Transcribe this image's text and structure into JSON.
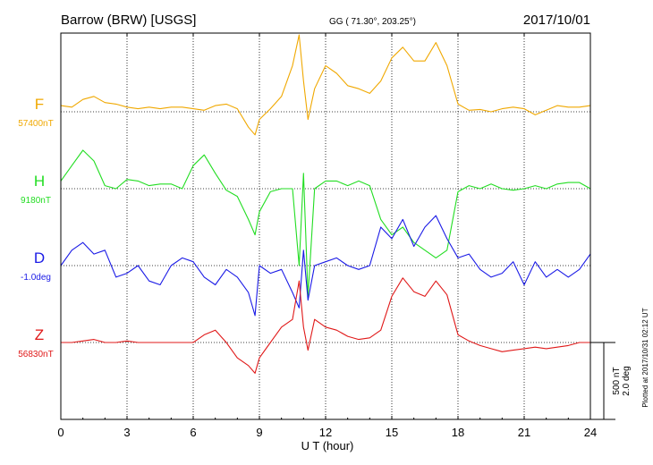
{
  "header": {
    "station": "Barrow (BRW)  [USGS]",
    "coords": "GG ( 71.30°, 203.25°)",
    "date": "2017/10/01"
  },
  "footer": {
    "plotted": "Plotted at 2017/10/31 02:12 UT",
    "scale_nt": "500 nT",
    "scale_deg": "2.0 deg"
  },
  "chart_data": {
    "type": "line",
    "title": "Barrow (BRW)  [USGS]",
    "xlabel": "U T (hour)",
    "ylabel": "",
    "xlim": [
      0,
      24
    ],
    "x_ticks": [
      0,
      3,
      6,
      9,
      12,
      15,
      18,
      21,
      24
    ],
    "grid": true,
    "scale_bar": {
      "nT": 500,
      "deg": 2.0
    },
    "x": [
      0,
      0.5,
      1,
      1.5,
      2,
      2.5,
      3,
      3.5,
      4,
      4.5,
      5,
      5.5,
      6,
      6.5,
      7,
      7.5,
      8,
      8.5,
      8.8,
      9,
      9.5,
      10,
      10.5,
      10.8,
      11,
      11.2,
      11.5,
      12,
      12.5,
      13,
      13.5,
      14,
      14.5,
      15,
      15.5,
      16,
      16.5,
      17,
      17.5,
      18,
      18.5,
      19,
      19.5,
      20,
      20.5,
      21,
      21.5,
      22,
      22.5,
      23,
      23.5,
      24
    ],
    "series": [
      {
        "name": "F",
        "baseline_label": "57400nT",
        "color": "#f0a800",
        "values": [
          40,
          30,
          80,
          100,
          60,
          50,
          30,
          20,
          30,
          20,
          30,
          30,
          20,
          10,
          40,
          50,
          20,
          -100,
          -150,
          -50,
          20,
          100,
          300,
          500,
          200,
          -50,
          150,
          300,
          250,
          170,
          150,
          120,
          200,
          350,
          420,
          330,
          330,
          450,
          300,
          50,
          10,
          15,
          0,
          20,
          30,
          20,
          -20,
          10,
          40,
          30,
          30,
          40
        ]
      },
      {
        "name": "H",
        "baseline_label": "9180nT",
        "color": "#22dd22",
        "values": [
          50,
          150,
          250,
          180,
          20,
          0,
          60,
          50,
          20,
          30,
          30,
          0,
          150,
          220,
          100,
          -10,
          -50,
          -200,
          -300,
          -150,
          -20,
          0,
          0,
          -500,
          100,
          -700,
          0,
          50,
          50,
          20,
          50,
          20,
          -200,
          -300,
          -250,
          -350,
          -400,
          -450,
          -400,
          -20,
          20,
          0,
          30,
          0,
          -10,
          0,
          20,
          0,
          30,
          40,
          40,
          0
        ]
      },
      {
        "name": "D",
        "baseline_label": "-1.0deg",
        "color": "#1a1ae6",
        "values": [
          0.0,
          0.4,
          0.6,
          0.3,
          0.4,
          -0.3,
          -0.2,
          0.0,
          -0.4,
          -0.5,
          0.0,
          0.2,
          0.1,
          -0.3,
          -0.5,
          -0.1,
          -0.3,
          -0.7,
          -1.3,
          0.0,
          -0.2,
          -0.1,
          -0.7,
          -1.1,
          0.4,
          -0.9,
          0.0,
          0.1,
          0.2,
          0.0,
          -0.1,
          0.0,
          1.0,
          0.7,
          1.2,
          0.5,
          1.0,
          1.3,
          0.7,
          0.2,
          0.3,
          -0.1,
          -0.3,
          -0.2,
          0.1,
          -0.5,
          0.1,
          -0.3,
          -0.1,
          -0.3,
          -0.1,
          0.3
        ]
      },
      {
        "name": "Z",
        "baseline_label": "56830nT",
        "color": "#e01818",
        "values": [
          0,
          0,
          10,
          20,
          0,
          0,
          10,
          0,
          0,
          0,
          0,
          0,
          0,
          50,
          80,
          0,
          -100,
          -150,
          -200,
          -100,
          0,
          100,
          150,
          400,
          100,
          -50,
          150,
          100,
          80,
          40,
          20,
          30,
          80,
          300,
          420,
          330,
          300,
          400,
          310,
          50,
          10,
          -20,
          -40,
          -60,
          -50,
          -40,
          -30,
          -40,
          -30,
          -20,
          0,
          0
        ]
      }
    ]
  }
}
